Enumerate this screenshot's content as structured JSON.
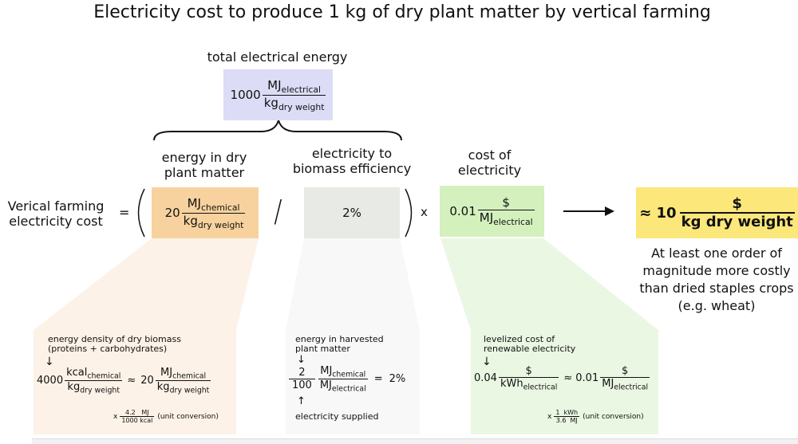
{
  "title": "Electricity cost to produce 1 kg of dry plant matter by vertical farming",
  "total": {
    "label": "total electrical energy",
    "coef": "1000",
    "num": "MJ",
    "num_sub": "electrical",
    "den": "kg",
    "den_sub": "dry weight"
  },
  "row_label_line1": "Verical farming",
  "row_label_line2": "electricity cost",
  "equals": "=",
  "divide": "/",
  "times": "x",
  "energy": {
    "header_line1": "energy in dry",
    "header_line2": "plant matter",
    "coef": "20",
    "num": "MJ",
    "num_sub": "chemical",
    "den": "kg",
    "den_sub": "dry weight"
  },
  "efficiency": {
    "header_line1": "electricity to",
    "header_line2": "biomass efficiency",
    "value": "2%"
  },
  "cost": {
    "header_line1": "cost of",
    "header_line2": "electricity",
    "coef": "0.01",
    "num": "$",
    "den": "MJ",
    "den_sub": "electrical"
  },
  "result": {
    "approx": "≈ 10",
    "num": "$",
    "den": "kg dry weight",
    "note_lines": [
      "At least one order of",
      "magnitude more costly",
      "than dried staples crops",
      "(e.g. wheat)"
    ]
  },
  "detail_energy": {
    "label_line1": "energy density of dry biomass",
    "label_line2": "(proteins + carbohydrates)",
    "arrow": "↓",
    "coef1": "4000",
    "num1": "kcal",
    "num1_sub": "chemical",
    "den1": "kg",
    "den1_sub": "dry weight",
    "approx": "≈",
    "coef2": "20",
    "num2": "MJ",
    "num2_sub": "chemical",
    "den2": "kg",
    "den2_sub": "dry weight",
    "conv_x": "x",
    "conv_num_val": "4.2",
    "conv_num_unit": "MJ",
    "conv_den_val": "1000",
    "conv_den_unit": "kcal",
    "conv_note": "(unit conversion)"
  },
  "detail_efficiency": {
    "label_line1": "energy in harvested",
    "label_line2": "plant matter",
    "arrow_down": "↓",
    "num_val": "2",
    "num_unit": "MJ",
    "num_unit_sub": "chemical",
    "den_val": "100",
    "den_unit": "MJ",
    "den_unit_sub": "electrical",
    "equals": "=",
    "result": "2%",
    "arrow_up": "↑",
    "bottom_label": "electricity supplied"
  },
  "detail_cost": {
    "label_line1": "levelized cost of",
    "label_line2": "renewable electricity",
    "arrow": "↓",
    "coef1": "0.04",
    "num1": "$",
    "den1": "kWh",
    "den1_sub": "electrical",
    "approx": "≈",
    "coef2": "0.01",
    "num2": "$",
    "den2": "MJ",
    "den2_sub": "electrical",
    "conv_x": "x",
    "conv_num_val": "1",
    "conv_num_unit": "kWh",
    "conv_den_val": "3.6",
    "conv_den_unit": "MJ",
    "conv_note": "(unit conversion)"
  },
  "colors": {
    "total_box": "#dcdcf7",
    "energy_box": "#f7d29e",
    "efficiency_box": "#e8eae5",
    "cost_box": "#d3f0bd",
    "result_box": "#fbe77a",
    "energy_panel": "#fdf2e7",
    "efficiency_panel": "#f8f8f8",
    "cost_panel": "#eaf7e2"
  }
}
